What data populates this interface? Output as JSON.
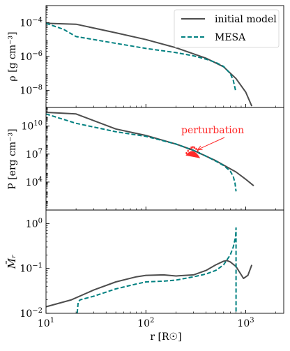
{
  "chart_data": [
    {
      "type": "line",
      "panel": "density",
      "ylabel": "ρ [g cm⁻³]",
      "yscale": "log",
      "ylim": [
        1e-09,
        0.001
      ],
      "ytick_labels": [
        {
          "value": 0.0001,
          "exp": "−4"
        },
        {
          "value": 1e-06,
          "exp": "−6"
        },
        {
          "value": 1e-08,
          "exp": "−8"
        }
      ],
      "legend": {
        "placement": "top-right",
        "entries": [
          "initial model",
          "MESA"
        ]
      },
      "series": [
        {
          "name": "initial model",
          "style": "solid",
          "color": "#4d4d4d",
          "x": [
            10,
            20,
            50,
            100,
            200,
            400,
            600,
            800,
            1000,
            1150
          ],
          "y": [
            9e-05,
            8e-05,
            2.5e-05,
            1e-05,
            3.3e-06,
            8e-07,
            2.5e-07,
            5e-08,
            8e-09,
            1.2e-09
          ]
        },
        {
          "name": "MESA",
          "style": "dashed",
          "color": "#008080",
          "x": [
            10,
            15,
            20,
            50,
            100,
            200,
            300,
            400,
            500,
            600,
            700,
            750,
            790,
            800
          ],
          "y": [
            9e-05,
            4e-05,
            1.5e-05,
            6e-06,
            3e-06,
            1.7e-06,
            1.1e-06,
            7e-07,
            4.5e-07,
            2.6e-07,
            1e-07,
            4e-08,
            1e-08,
            8e-09
          ]
        }
      ]
    },
    {
      "type": "line",
      "panel": "pressure",
      "ylabel": "P [erg cm⁻³]",
      "yscale": "log",
      "ylim": [
        10,
        1000000000000.0
      ],
      "ytick_labels": [
        {
          "value": 10000000000.0,
          "exp": "10"
        },
        {
          "value": 10000000.0,
          "exp": "7"
        },
        {
          "value": 10000.0,
          "exp": "4"
        }
      ],
      "annotation": {
        "text": "perturbation",
        "color": "#ff2a2a",
        "target_x": 330,
        "target_y": 30000000.0
      },
      "perturbation_region": {
        "x_range": [
          250,
          350
        ],
        "y_range": [
          5000000.0,
          30000000.0
        ]
      },
      "series": [
        {
          "name": "initial model",
          "style": "solid",
          "color": "#4d4d4d",
          "x": [
            10,
            20,
            50,
            100,
            200,
            300,
            500,
            800,
            1000,
            1200
          ],
          "y": [
            300000000000.0,
            200000000000.0,
            5000000000.0,
            1000000000.0,
            120000000.0,
            25000000.0,
            2000000.0,
            120000.0,
            20000.0,
            4000.0
          ]
        },
        {
          "name": "MESA",
          "style": "dashed",
          "color": "#008080",
          "x": [
            10,
            20,
            50,
            100,
            200,
            300,
            400,
            500,
            600,
            700,
            750,
            780,
            800
          ],
          "y": [
            200000000000.0,
            20000000000.0,
            2500000000.0,
            800000000.0,
            120000000.0,
            25000000.0,
            6000000.0,
            1800000.0,
            600000.0,
            150000.0,
            40000.0,
            8000.0,
            1000.0
          ]
        }
      ]
    },
    {
      "type": "line",
      "panel": "mach",
      "ylabel": "M̄ᵣ",
      "yscale": "log",
      "ylim": [
        0.01,
        2
      ],
      "xlabel": "r  [R☉]",
      "xscale": "log",
      "xlim": [
        10,
        2400
      ],
      "xtick_labels": [
        {
          "value": 10,
          "exp": "1"
        },
        {
          "value": 100,
          "exp": "2"
        },
        {
          "value": 1000,
          "exp": "3"
        }
      ],
      "ytick_labels": [
        {
          "value": 1,
          "exp": "0"
        },
        {
          "value": 0.1,
          "exp": "−1"
        },
        {
          "value": 0.01,
          "exp": "−2"
        }
      ],
      "series": [
        {
          "name": "initial model",
          "style": "solid",
          "color": "#4d4d4d",
          "x": [
            10,
            18,
            30,
            50,
            80,
            100,
            150,
            200,
            300,
            400,
            500,
            600,
            650,
            700,
            800,
            950,
            1050,
            1150
          ],
          "y": [
            0.014,
            0.02,
            0.033,
            0.05,
            0.065,
            0.07,
            0.072,
            0.068,
            0.072,
            0.09,
            0.12,
            0.145,
            0.15,
            0.14,
            0.11,
            0.06,
            0.07,
            0.12
          ]
        },
        {
          "name": "MESA",
          "style": "dashed",
          "color": "#008080",
          "x": [
            20.5,
            21,
            22,
            30,
            50,
            80,
            100,
            150,
            200,
            300,
            400,
            500,
            600,
            700,
            750,
            790,
            800,
            800
          ],
          "y": [
            0.01,
            0.018,
            0.02,
            0.024,
            0.035,
            0.045,
            0.05,
            0.052,
            0.055,
            0.065,
            0.075,
            0.09,
            0.12,
            0.2,
            0.3,
            0.5,
            0.8,
            0.01
          ]
        }
      ]
    }
  ]
}
